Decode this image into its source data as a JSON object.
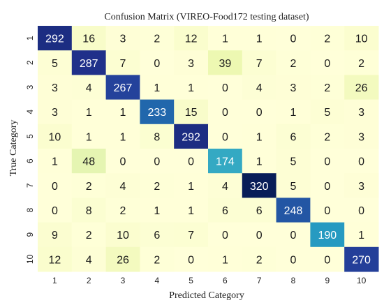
{
  "chart_data": {
    "type": "heatmap",
    "title": "Confusion Matrix (VIREO-Food172 testing dataset)",
    "xlabel": "Predicted Category",
    "ylabel": "True Category",
    "x_categories": [
      "1",
      "2",
      "3",
      "4",
      "5",
      "6",
      "7",
      "8",
      "9",
      "10"
    ],
    "y_categories": [
      "1",
      "2",
      "3",
      "4",
      "5",
      "6",
      "7",
      "8",
      "9",
      "10"
    ],
    "values": [
      [
        292,
        16,
        3,
        2,
        12,
        1,
        1,
        0,
        2,
        10
      ],
      [
        5,
        287,
        7,
        0,
        3,
        39,
        7,
        2,
        0,
        2
      ],
      [
        3,
        4,
        267,
        1,
        1,
        0,
        4,
        3,
        2,
        26
      ],
      [
        3,
        1,
        1,
        233,
        15,
        0,
        0,
        1,
        5,
        3
      ],
      [
        10,
        1,
        1,
        8,
        292,
        0,
        1,
        6,
        2,
        3
      ],
      [
        1,
        48,
        0,
        0,
        0,
        174,
        1,
        5,
        0,
        0
      ],
      [
        0,
        2,
        4,
        2,
        1,
        4,
        320,
        5,
        0,
        3
      ],
      [
        0,
        8,
        2,
        1,
        1,
        6,
        6,
        248,
        0,
        0
      ],
      [
        9,
        2,
        10,
        6,
        7,
        0,
        0,
        0,
        190,
        1
      ],
      [
        12,
        4,
        26,
        2,
        0,
        1,
        2,
        0,
        0,
        270
      ]
    ],
    "colormap": "YlGnBu",
    "color_range": [
      0,
      320
    ],
    "grid": false,
    "legend": "none"
  }
}
